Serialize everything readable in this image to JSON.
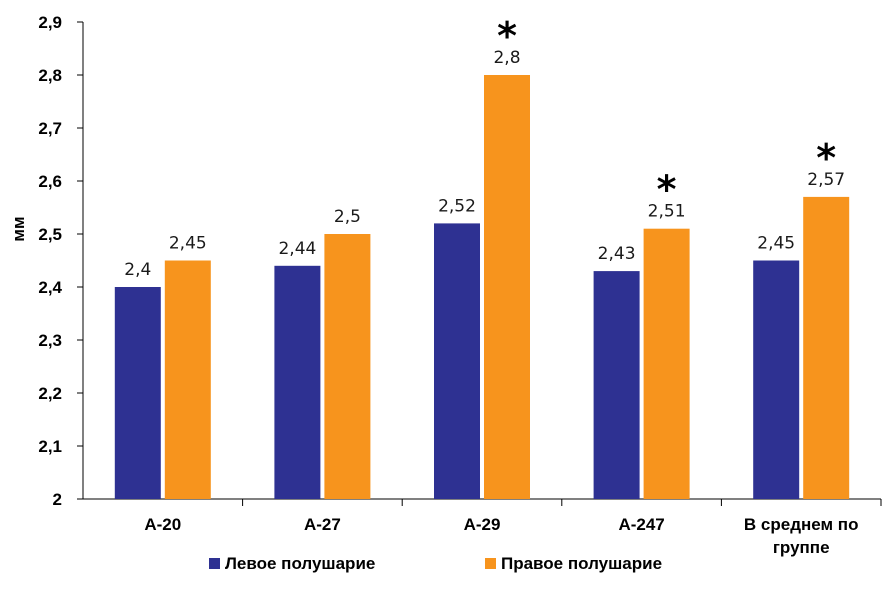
{
  "chart_data": {
    "type": "bar",
    "ylabel": "мм",
    "ylim": [
      2,
      2.9
    ],
    "yticks": [
      "2",
      "2,1",
      "2,2",
      "2,3",
      "2,4",
      "2,5",
      "2,6",
      "2,7",
      "2,8",
      "2,9"
    ],
    "categories": [
      [
        "А-20"
      ],
      [
        "А-27"
      ],
      [
        "А-29"
      ],
      [
        "А-247"
      ],
      [
        "В среднем по",
        "группе"
      ]
    ],
    "series": [
      {
        "name": "Левое полушарие",
        "color": "#2e3192",
        "values": [
          2.4,
          2.44,
          2.52,
          2.43,
          2.45
        ],
        "labels": [
          "2,4",
          "2,44",
          "2,52",
          "2,43",
          "2,45"
        ]
      },
      {
        "name": "Правое полушарие",
        "color": "#f7941d",
        "values": [
          2.45,
          2.5,
          2.8,
          2.51,
          2.57
        ],
        "labels": [
          "2,45",
          "2,5",
          "2,8",
          "2,51",
          "2,57"
        ]
      }
    ],
    "significance_marker": "*",
    "significant": [
      false,
      false,
      true,
      true,
      true
    ],
    "grid": false,
    "legend_position": "bottom"
  }
}
